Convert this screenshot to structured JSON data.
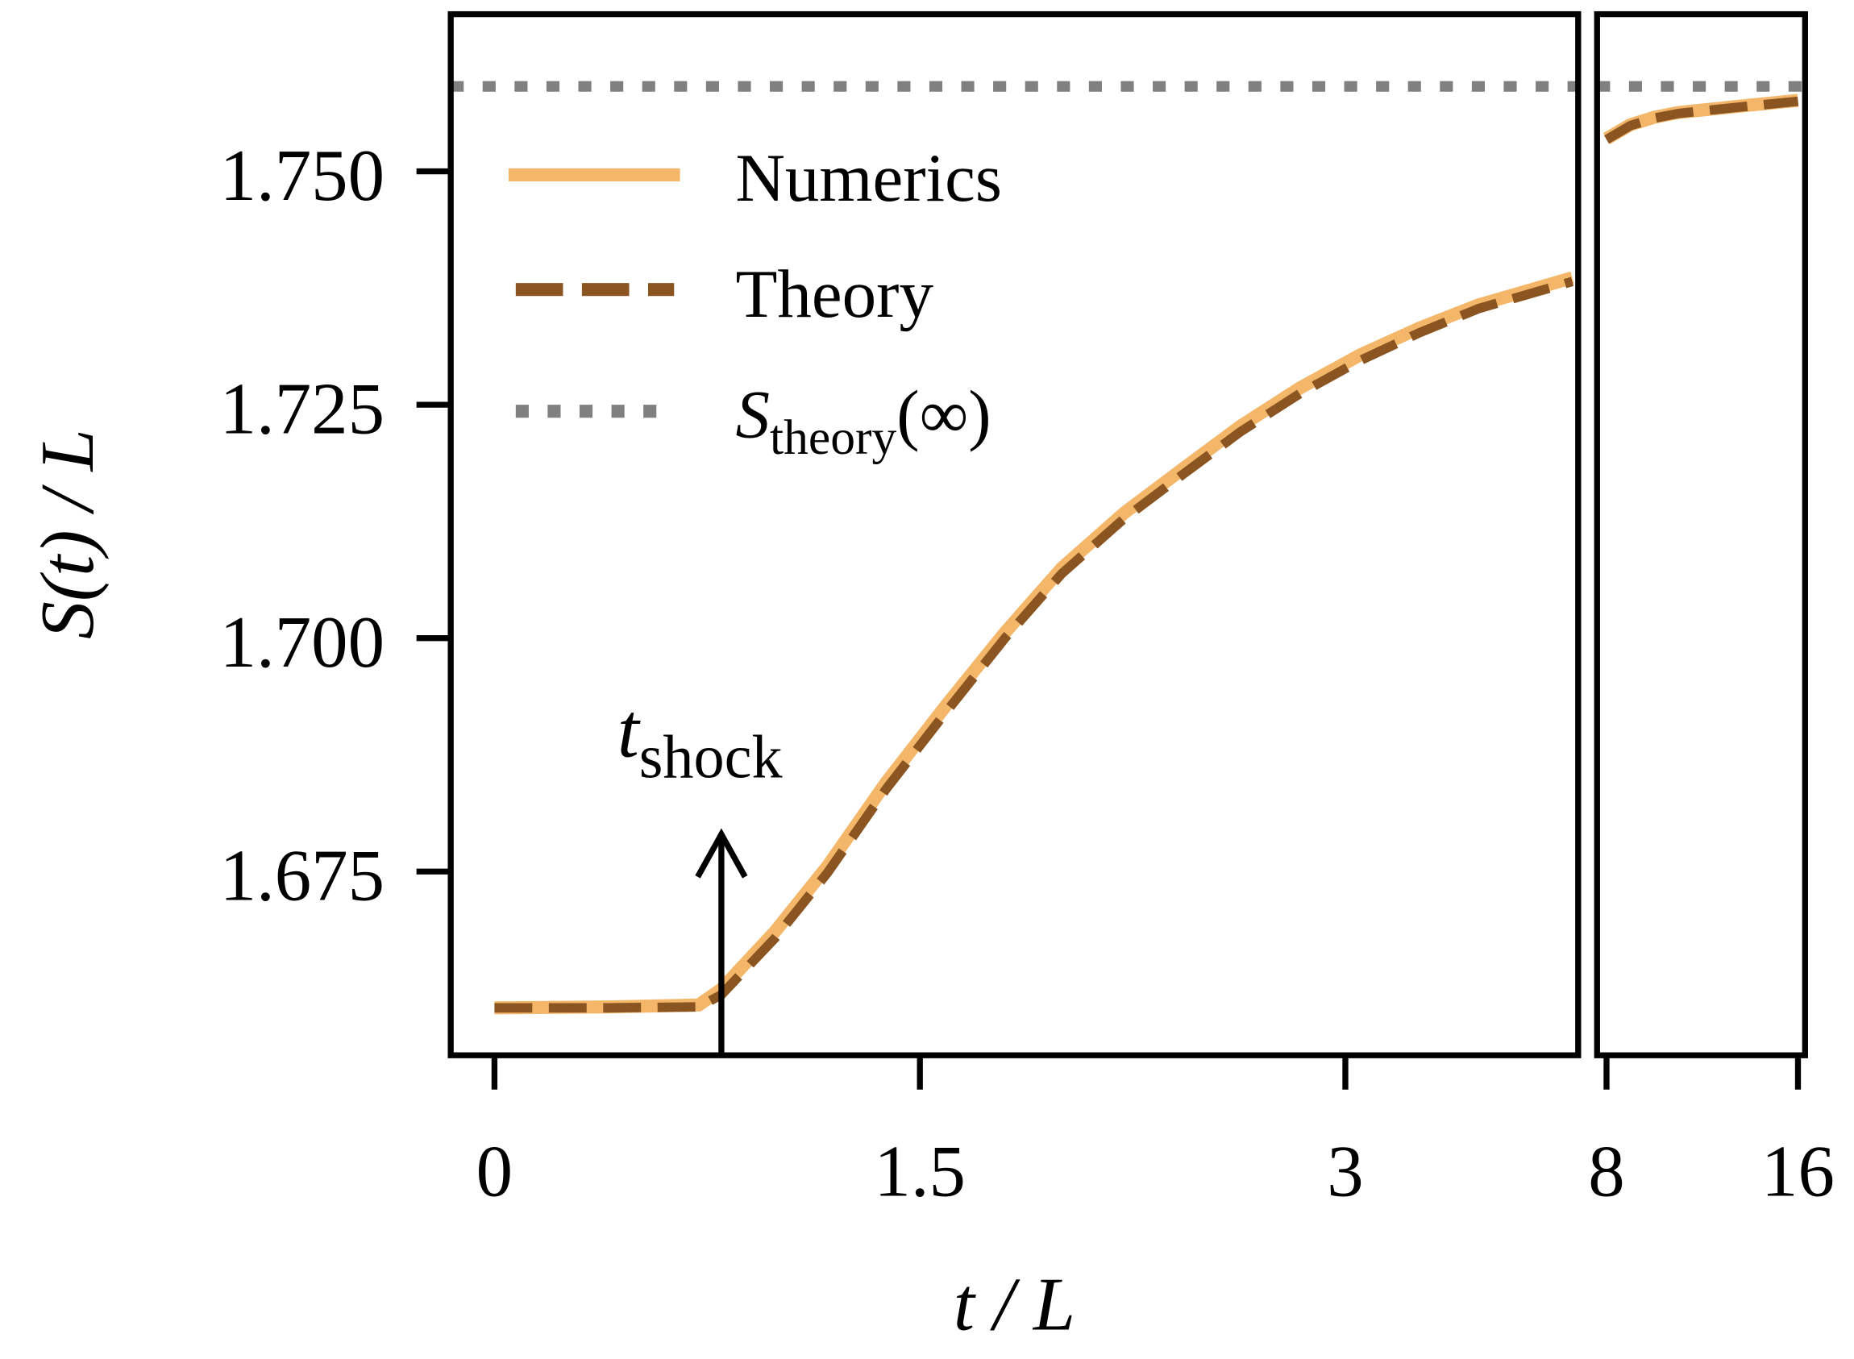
{
  "chart_data": {
    "type": "line",
    "xlabel": "t / L",
    "ylabel": "S(t) / L",
    "ylim": [
      1.6555,
      1.7665
    ],
    "yticks": [
      1.675,
      1.7,
      1.725,
      1.75
    ],
    "ytick_labels": [
      "1.675",
      "1.700",
      "1.725",
      "1.750"
    ],
    "panels": [
      {
        "name": "main",
        "xlim": [
          -0.15,
          3.82
        ],
        "xticks": [
          0,
          1.5,
          3
        ],
        "xtick_labels": [
          "0",
          "1.5",
          "3"
        ]
      },
      {
        "name": "tail",
        "xlim": [
          7.6,
          16.3
        ],
        "xticks": [
          8,
          16
        ],
        "xtick_labels": [
          "8",
          "16"
        ]
      }
    ],
    "legend": {
      "placement": "top-left",
      "entries": [
        "Numerics",
        "Theory",
        "S_theory(∞)"
      ]
    },
    "legend_text": {
      "numerics": "Numerics",
      "theory": "Theory",
      "sinf_main": "S",
      "sinf_sub": "theory",
      "sinf_arg": "(∞)"
    },
    "series": [
      {
        "name": "Numerics",
        "style": "solid",
        "color": "#f4b76a",
        "x": [
          0,
          0.4,
          0.72,
          0.8,
          0.99,
          1.175,
          1.38,
          1.59,
          1.8,
          2.0,
          2.22,
          2.43,
          2.63,
          2.84,
          3.05,
          3.26,
          3.47,
          3.8,
          8,
          9,
          10,
          11,
          12.5,
          14,
          16
        ],
        "y": [
          1.6604,
          1.6605,
          1.6607,
          1.6624,
          1.6686,
          1.6756,
          1.6845,
          1.6927,
          1.7006,
          1.7075,
          1.7134,
          1.7182,
          1.7227,
          1.7268,
          1.7303,
          1.7332,
          1.7357,
          1.7386,
          1.7535,
          1.755,
          1.7558,
          1.7563,
          1.7567,
          1.7571,
          1.7576
        ]
      },
      {
        "name": "Theory",
        "style": "dashed",
        "color": "#8a5520",
        "x": [
          0,
          0.4,
          0.72,
          0.8,
          0.99,
          1.175,
          1.38,
          1.59,
          1.8,
          2.0,
          2.22,
          2.43,
          2.63,
          2.84,
          3.05,
          3.26,
          3.47,
          3.8,
          8,
          9,
          10,
          11,
          12.5,
          14,
          16
        ],
        "y": [
          1.6604,
          1.6604,
          1.6605,
          1.6618,
          1.6679,
          1.6749,
          1.6838,
          1.692,
          1.7,
          1.7069,
          1.7128,
          1.7176,
          1.7221,
          1.7262,
          1.7297,
          1.7327,
          1.7353,
          1.7382,
          1.7534,
          1.7549,
          1.7557,
          1.7562,
          1.7566,
          1.757,
          1.7575
        ]
      },
      {
        "name": "S_theory(∞)",
        "style": "dotted",
        "color": "#808080",
        "value": 1.7591
      }
    ],
    "annotations": [
      {
        "text_main": "t",
        "text_sub": "shock",
        "x": 0.8,
        "type": "arrow-up"
      }
    ]
  }
}
